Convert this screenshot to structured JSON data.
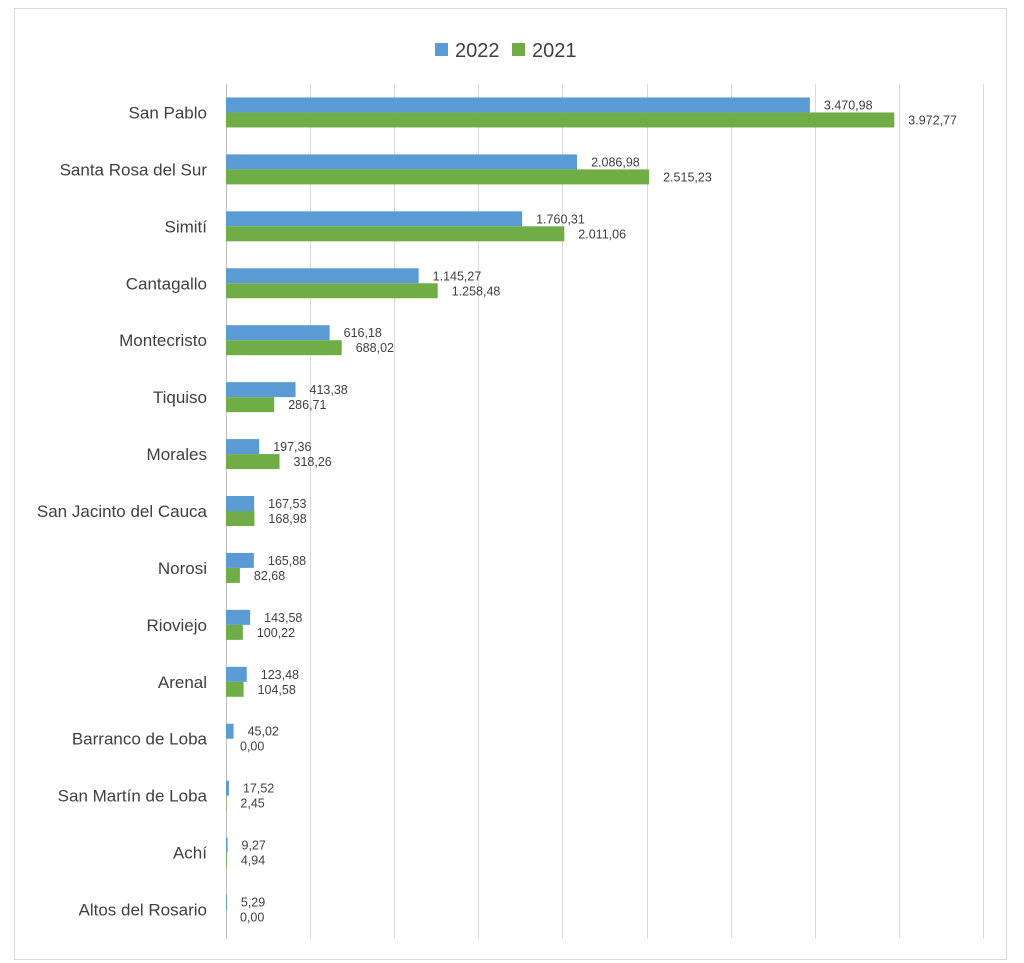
{
  "chart_data": {
    "type": "bar",
    "orientation": "horizontal",
    "title": "",
    "xlabel": "",
    "ylabel": "",
    "categories": [
      "San Pablo",
      "Santa Rosa del Sur",
      "Simití",
      "Cantagallo",
      "Montecristo",
      "Tiquiso",
      "Morales",
      "San Jacinto del Cauca",
      "Norosi",
      "Rioviejo",
      "Arenal",
      "Barranco de Loba",
      "San Martín de Loba",
      "Achí",
      "Altos del Rosario"
    ],
    "series": [
      {
        "name": "2022",
        "color": "#5b9bd5",
        "values": [
          3470.98,
          2086.98,
          1760.31,
          1145.27,
          616.18,
          413.38,
          197.36,
          167.53,
          165.88,
          143.58,
          123.48,
          45.02,
          17.52,
          9.27,
          5.29
        ],
        "labels": [
          "3.470,98",
          "2.086,98",
          "1.760,31",
          "1.145,27",
          "616,18",
          "413,38",
          "197,36",
          "167,53",
          "165,88",
          "143,58",
          "123,48",
          "45,02",
          "17,52",
          "9,27",
          "5,29"
        ]
      },
      {
        "name": "2021",
        "color": "#70ad47",
        "values": [
          3972.77,
          2515.23,
          2011.06,
          1258.48,
          688.02,
          286.71,
          318.26,
          168.98,
          82.68,
          100.22,
          104.58,
          0.0,
          2.45,
          4.94,
          0.0
        ],
        "labels": [
          "3.972,77",
          "2.515,23",
          "2.011,06",
          "1.258,48",
          "688,02",
          "286,71",
          "318,26",
          "168,98",
          "82,68",
          "100,22",
          "104,58",
          "0,00",
          "2,45",
          "4,94",
          "0,00"
        ]
      }
    ],
    "xlim": [
      0,
      4500
    ],
    "x_major_unit": 500,
    "grid": "vertical",
    "legend_position": "top"
  }
}
